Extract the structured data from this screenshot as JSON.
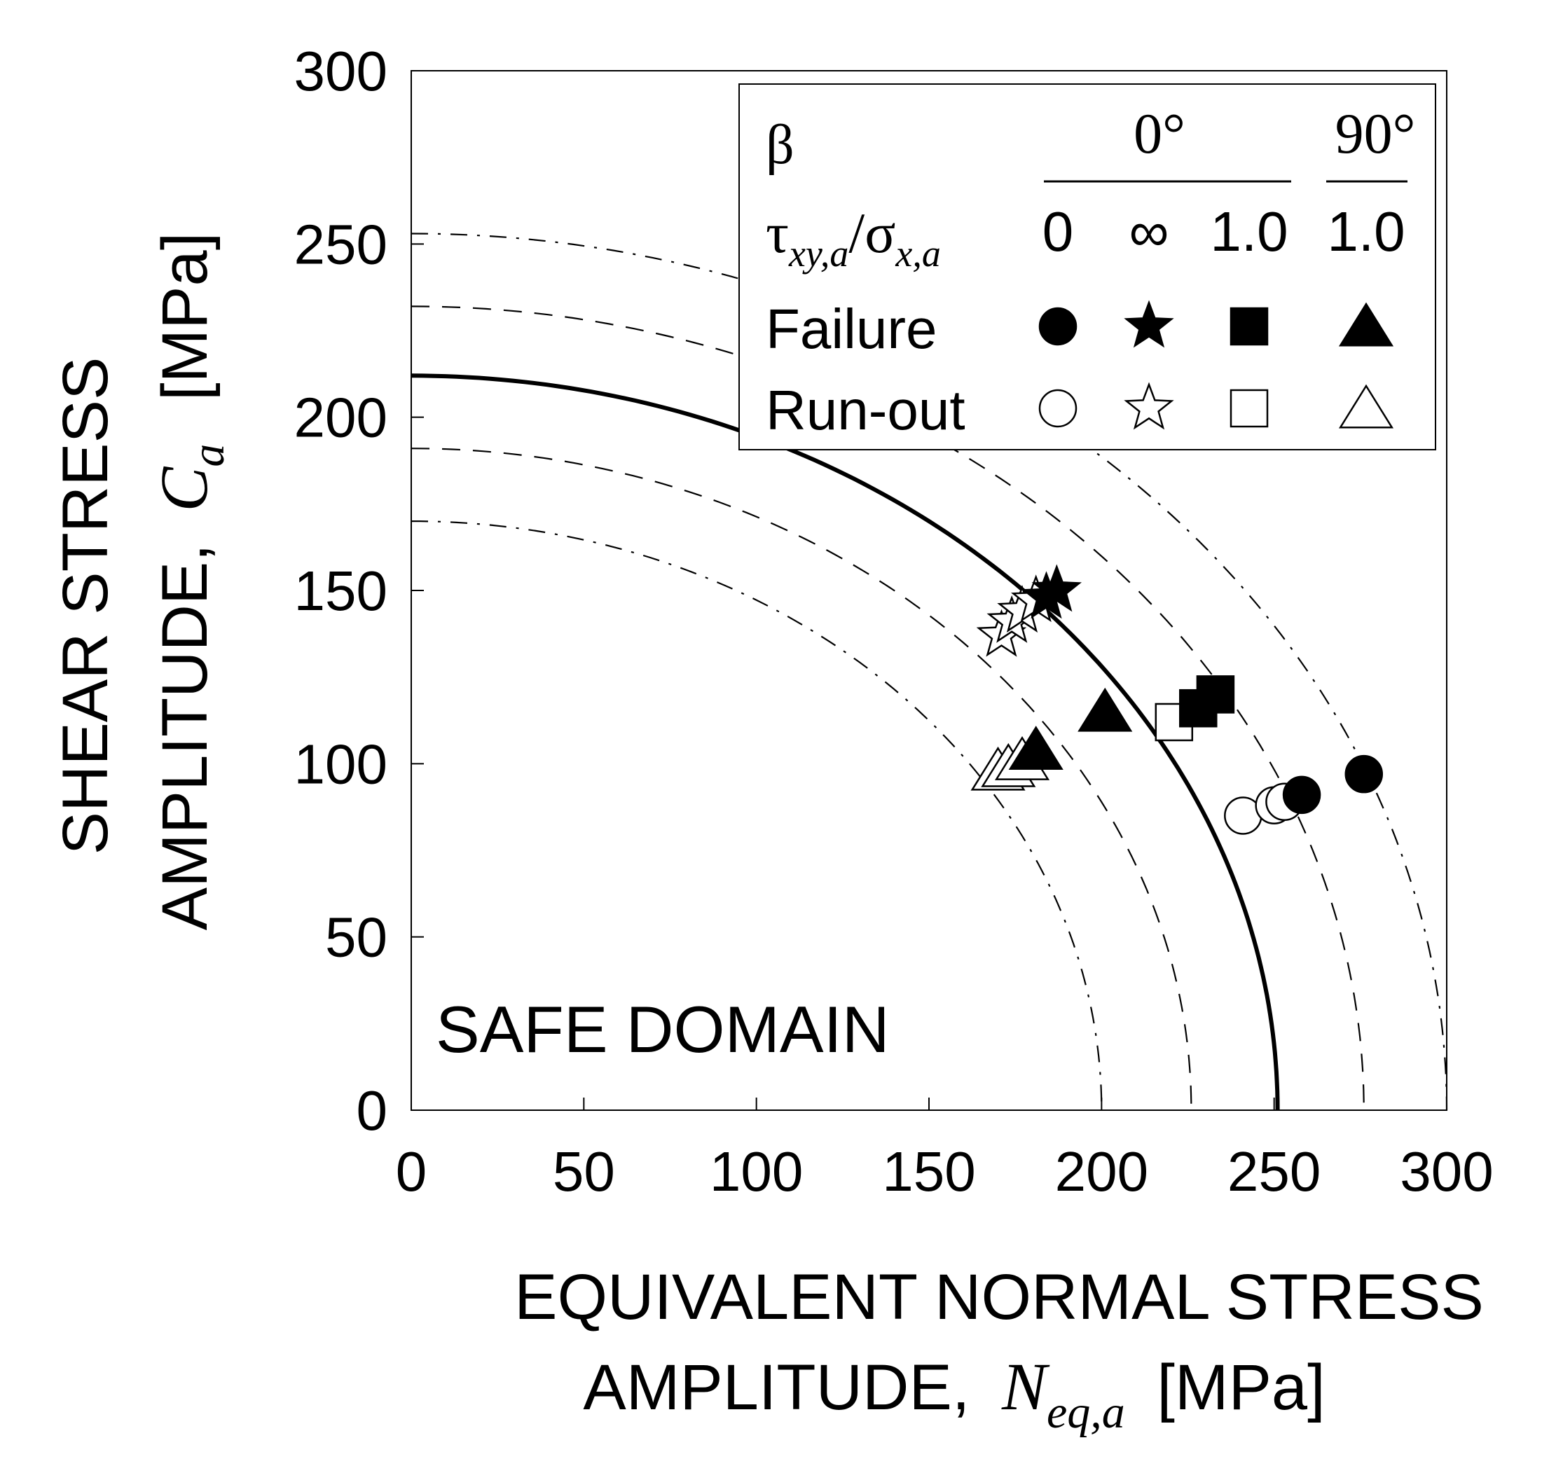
{
  "chart_data": {
    "type": "scatter",
    "xlabel": {
      "line1": "EQUIVALENT  NORMAL STRESS",
      "line2_prefix": "AMPLITUDE,",
      "symbol_main": "N",
      "symbol_sub": "eq,a",
      "unit": "[MPa]"
    },
    "ylabel": {
      "line1": "SHEAR STRESS",
      "line2_prefix": "AMPLITUDE,",
      "symbol_main": "C",
      "symbol_sub": "a",
      "unit": "[MPa]"
    },
    "xlim": [
      0,
      300
    ],
    "ylim": [
      0,
      300
    ],
    "xticks": [
      "0",
      "50",
      "100",
      "150",
      "200",
      "250",
      "300"
    ],
    "yticks": [
      "0",
      "50",
      "100",
      "150",
      "200",
      "250",
      "300"
    ],
    "grid": false,
    "annotation": "SAFE DOMAIN",
    "legend": {
      "placement": "top-right",
      "beta_label": "β",
      "beta_values": [
        "0°",
        "90°"
      ],
      "ratio_main1": "τ",
      "ratio_sub1": "xy,a",
      "ratio_sep": "/",
      "ratio_main2": "σ",
      "ratio_sub2": "x,a",
      "ratio_values": [
        "0",
        "∞",
        "1.0",
        "1.0"
      ],
      "failure_label": "Failure",
      "runout_label": "Run-out"
    },
    "curves": [
      {
        "style": "solid",
        "a": 251,
        "b": 212
      },
      {
        "style": "dashed",
        "a": 226,
        "b": 191
      },
      {
        "style": "dashed",
        "a": 276,
        "b": 232
      },
      {
        "style": "dashdot",
        "a": 200,
        "b": 170
      },
      {
        "style": "dashdot",
        "a": 300,
        "b": 253
      }
    ],
    "series": [
      {
        "marker": "circle",
        "fill": "filled",
        "points": [
          [
            258,
            91
          ],
          [
            276,
            97
          ]
        ]
      },
      {
        "marker": "circle",
        "fill": "open",
        "points": [
          [
            241,
            85
          ],
          [
            250,
            88
          ],
          [
            253,
            89
          ]
        ]
      },
      {
        "marker": "star",
        "fill": "filled",
        "points": [
          [
            187,
            150
          ],
          [
            184,
            148
          ]
        ]
      },
      {
        "marker": "star",
        "fill": "open",
        "points": [
          [
            171,
            137
          ],
          [
            174,
            141
          ],
          [
            177,
            144
          ],
          [
            181,
            147
          ]
        ]
      },
      {
        "marker": "square",
        "fill": "filled",
        "points": [
          [
            233,
            120
          ],
          [
            228,
            116
          ]
        ]
      },
      {
        "marker": "square",
        "fill": "open",
        "points": [
          [
            221,
            112
          ]
        ]
      },
      {
        "marker": "triangle",
        "fill": "filled",
        "points": [
          [
            201,
            115
          ],
          [
            181,
            104
          ]
        ]
      },
      {
        "marker": "triangle",
        "fill": "open",
        "points": [
          [
            170,
            98
          ],
          [
            173,
            99
          ],
          [
            177,
            101
          ]
        ]
      }
    ]
  }
}
